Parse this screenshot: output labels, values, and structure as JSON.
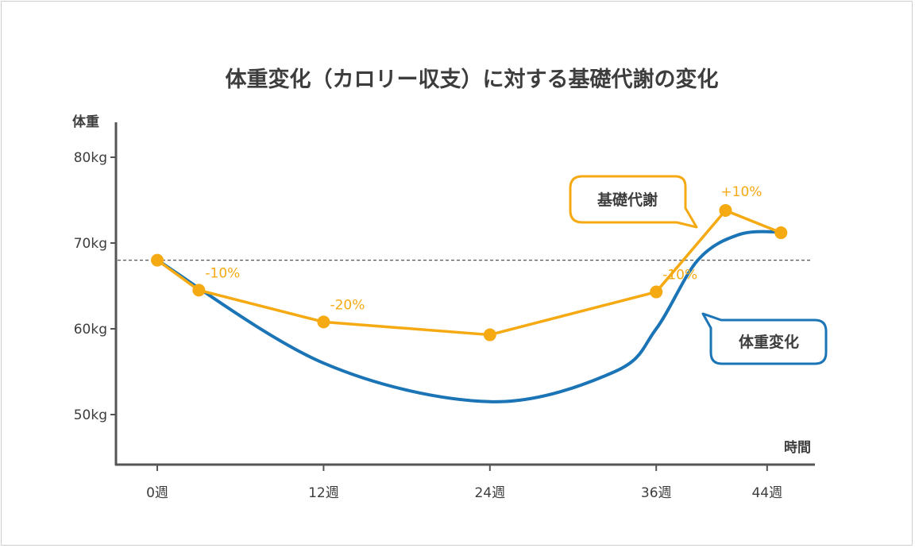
{
  "chart_data": {
    "type": "line",
    "title": "体重変化（カロリー収支）に対する基礎代謝の変化",
    "ylabel": "体重",
    "xlabel": "時間",
    "y_ticks": [
      "80kg",
      "70kg",
      "60kg",
      "50kg"
    ],
    "x_ticks": [
      "0週",
      "12週",
      "24週",
      "36週",
      "44週"
    ],
    "reference_line": {
      "style": "dashed",
      "y": 68
    },
    "series": [
      {
        "name": "基礎代謝",
        "color": "#f5a912",
        "marker": "circle",
        "points": [
          {
            "x": 0,
            "y": 68,
            "label": ""
          },
          {
            "x": 3,
            "y": 64.5,
            "label": "-10%"
          },
          {
            "x": 12,
            "y": 60.8,
            "label": "-20%"
          },
          {
            "x": 24,
            "y": 59.3,
            "label": ""
          },
          {
            "x": 36,
            "y": 64.3,
            "label": "-10%"
          },
          {
            "x": 41,
            "y": 73.8,
            "label": "+10%"
          },
          {
            "x": 45,
            "y": 71.2,
            "label": ""
          }
        ]
      },
      {
        "name": "体重変化",
        "color": "#1a74b5",
        "smooth": true,
        "points": [
          {
            "x": 0,
            "y": 68
          },
          {
            "x": 12,
            "y": 56
          },
          {
            "x": 24,
            "y": 51.5
          },
          {
            "x": 33,
            "y": 55
          },
          {
            "x": 36,
            "y": 60
          },
          {
            "x": 39,
            "y": 68
          },
          {
            "x": 42,
            "y": 71
          },
          {
            "x": 45,
            "y": 71.3
          }
        ]
      }
    ]
  }
}
